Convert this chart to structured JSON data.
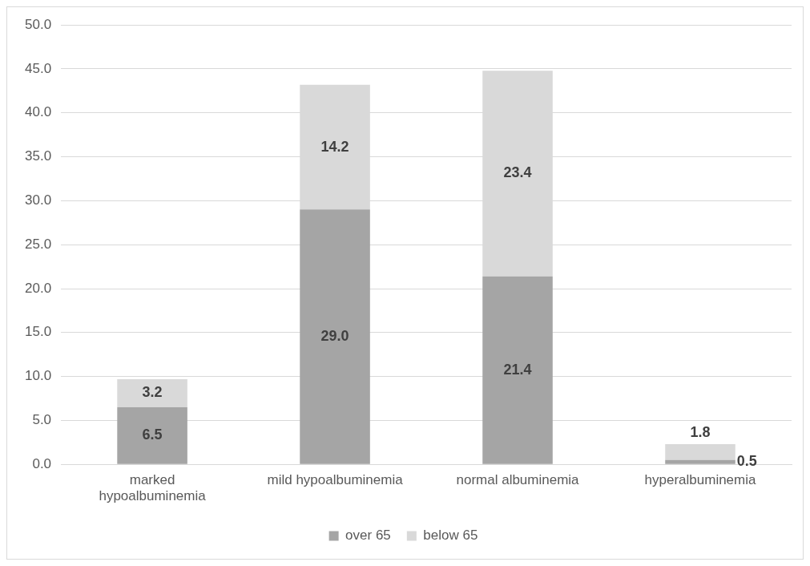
{
  "chart_data": {
    "type": "bar",
    "stacked": true,
    "categories": [
      "marked hypoalbuminemia",
      "mild hypoalbuminemia",
      "normal albuminemia",
      "hyperalbuminemia"
    ],
    "series": [
      {
        "name": "over 65",
        "color": "#a5a5a5",
        "values": [
          6.5,
          29.0,
          21.4,
          0.5
        ],
        "value_labels": [
          "6.5",
          "29.0",
          "21.4",
          "0.5"
        ]
      },
      {
        "name": "below 65",
        "color": "#d9d9d9",
        "values": [
          3.2,
          14.2,
          23.4,
          1.8
        ],
        "value_labels": [
          "3.2",
          "14.2",
          "23.4",
          "1.8"
        ]
      }
    ],
    "ylim": [
      0,
      50
    ],
    "yticks": [
      {
        "value": 0,
        "label": "0.0"
      },
      {
        "value": 5,
        "label": "5.0"
      },
      {
        "value": 10,
        "label": "10.0"
      },
      {
        "value": 15,
        "label": "15.0"
      },
      {
        "value": 20,
        "label": "20.0"
      },
      {
        "value": 25,
        "label": "25.0"
      },
      {
        "value": 30,
        "label": "30.0"
      },
      {
        "value": 35,
        "label": "35.0"
      },
      {
        "value": 40,
        "label": "40.0"
      },
      {
        "value": 45,
        "label": "45.0"
      },
      {
        "value": 50,
        "label": "50.0"
      }
    ],
    "grid": "y",
    "legend": "bottom"
  }
}
